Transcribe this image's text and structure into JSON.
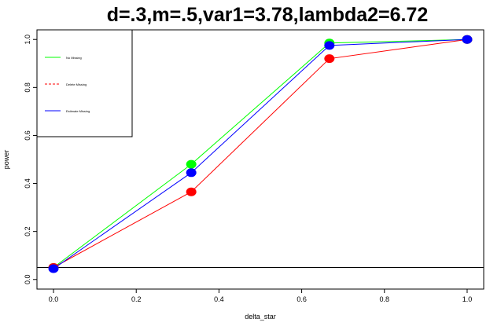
{
  "chart_data": {
    "type": "line",
    "title": "d=.3,m=.5,var1=3.78,lambda2=6.72",
    "xlabel": "delta_star",
    "ylabel": "power",
    "xlim": [
      -0.04,
      1.04
    ],
    "ylim": [
      -0.04,
      1.04
    ],
    "x_ticks": [
      0.0,
      0.2,
      0.4,
      0.6,
      0.8,
      1.0
    ],
    "x_tick_labels": [
      "0.0",
      "0.2",
      "0.4",
      "0.6",
      "0.8",
      "1.0"
    ],
    "y_ticks": [
      0.0,
      0.2,
      0.4,
      0.6,
      0.8,
      1.0
    ],
    "y_tick_labels": [
      "0.0",
      "0.2",
      "0.4",
      "0.6",
      "0.8",
      "1.0"
    ],
    "reference_line_y": 0.05,
    "grid": false,
    "legend_position": "top-left",
    "x": [
      0.0,
      0.333,
      0.667,
      1.0
    ],
    "series": [
      {
        "name": "No Missing",
        "color": "#00ff00",
        "line_style": "solid",
        "values": [
          0.05,
          0.48,
          0.985,
          1.0
        ]
      },
      {
        "name": "Delete Missing",
        "color": "#ff0000",
        "line_style": "dashed",
        "values": [
          0.05,
          0.365,
          0.92,
          1.0
        ]
      },
      {
        "name": "Estimate Missing",
        "color": "#0000ff",
        "line_style": "solid",
        "values": [
          0.045,
          0.445,
          0.975,
          1.0
        ]
      }
    ]
  }
}
